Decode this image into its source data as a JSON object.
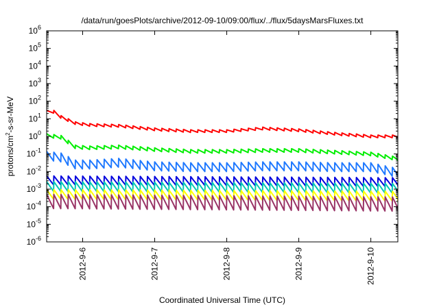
{
  "chart_data": {
    "type": "line",
    "title": "/data/run/goesPlots/archive/2012-09-10/09:00/flux/../flux/5daysMarsFluxes.txt",
    "xlabel": "Coordinated Universal Time (UTC)",
    "ylabel": {
      "prefix": "protons/cm",
      "superscript": "2",
      "suffix": "-s-sr-MeV"
    },
    "y_scale": "log",
    "ylim_exponents": [
      -6,
      6
    ],
    "y_tick_base": "10",
    "y_tick_exponents": [
      "-6",
      "-5",
      "-4",
      "-3",
      "-2",
      "-1",
      "0",
      "1",
      "2",
      "3",
      "4",
      "5",
      "6"
    ],
    "xlim": [
      "2012-09-05 12:00",
      "2012-09-10 09:00"
    ],
    "x_ticks": [
      {
        "label": "2012-9-6",
        "day": 1
      },
      {
        "label": "2012-9-7",
        "day": 2
      },
      {
        "label": "2012-9-8",
        "day": 3
      },
      {
        "label": "2012-9-9",
        "day": 4
      },
      {
        "label": "2012-9-10",
        "day": 5
      }
    ],
    "grid": false,
    "series": [
      {
        "color": "#ff0000",
        "anchors_days": [
          0,
          0.1,
          0.2,
          0.4,
          0.6,
          1.0,
          1.5,
          2.0,
          2.5,
          3.0,
          3.5,
          4.0,
          4.5,
          4.9
        ],
        "anchors_log10": [
          1.4,
          1.4,
          1.1,
          0.75,
          0.65,
          0.6,
          0.4,
          0.3,
          0.3,
          0.45,
          0.35,
          0.15,
          0.0,
          0.0
        ],
        "sawtooth_log10": 0.15
      },
      {
        "color": "#00ee00",
        "anchors_days": [
          0,
          0.2,
          0.4,
          0.6,
          1.0,
          1.5,
          2.0,
          2.5,
          3.0,
          3.5,
          4.0,
          4.5,
          4.9
        ],
        "anchors_log10": [
          0.05,
          -0.05,
          -0.6,
          -0.65,
          -0.6,
          -0.75,
          -0.85,
          -0.85,
          -0.8,
          -0.8,
          -0.9,
          -1.0,
          -1.3
        ],
        "sawtooth_log10": 0.2
      },
      {
        "color": "#1e78ff",
        "anchors_days": [
          0,
          0.2,
          0.4,
          0.6,
          1.0,
          1.5,
          2.0,
          2.5,
          3.0,
          3.5,
          4.0,
          4.5,
          4.9
        ],
        "anchors_log10": [
          -1.1,
          -1.2,
          -1.6,
          -1.6,
          -1.5,
          -1.7,
          -1.75,
          -1.75,
          -1.7,
          -1.7,
          -1.75,
          -1.75,
          -2.1
        ],
        "sawtooth_log10": 0.5
      },
      {
        "color": "#0000dd",
        "anchors_days": [
          0,
          4.9
        ],
        "anchors_log10": [
          -2.5,
          -2.6
        ],
        "sawtooth_log10": 0.5
      },
      {
        "color": "#00c8b4",
        "anchors_days": [
          0,
          4.9
        ],
        "anchors_log10": [
          -2.85,
          -2.95
        ],
        "sawtooth_log10": 0.55
      },
      {
        "color": "#ffff00",
        "anchors_days": [
          0,
          4.9
        ],
        "anchors_log10": [
          -3.3,
          -3.4
        ],
        "sawtooth_log10": 0.55
      },
      {
        "color": "#993366",
        "anchors_days": [
          0,
          4.9
        ],
        "anchors_log10": [
          -3.7,
          -3.85
        ],
        "sawtooth_log10": 0.8
      }
    ]
  }
}
